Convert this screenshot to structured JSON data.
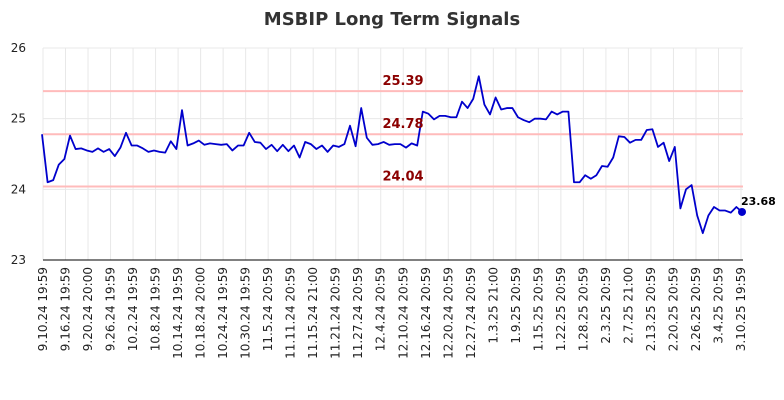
{
  "chart_data": {
    "type": "line",
    "title": "MSBIP Long Term Signals",
    "xlabel": "",
    "ylabel": "",
    "ylim": [
      23,
      26
    ],
    "yticks": [
      "23",
      "24",
      "25",
      "26"
    ],
    "grid": true,
    "line_color": "#0000cc",
    "hline_color": "#ffbbbb",
    "label_color": "#8b0000",
    "x_tick_labels": [
      "9.10.24 19:59",
      "9.16.24 19:59",
      "9.20.24 20:00",
      "9.26.24 19:59",
      "10.2.24 19:59",
      "10.8.24 19:59",
      "10.14.24 19:59",
      "10.18.24 20:00",
      "10.24.24 19:59",
      "10.30.24 19:59",
      "11.5.24 20:59",
      "11.11.24 20:59",
      "11.15.24 21:00",
      "11.21.24 20:59",
      "11.27.24 20:59",
      "12.4.24 20:59",
      "12.10.24 20:59",
      "12.16.24 20:59",
      "12.20.24 20:59",
      "12.27.24 20:59",
      "1.3.25 21:00",
      "1.9.25 20:59",
      "1.15.25 20:59",
      "1.22.25 20:59",
      "1.28.25 20:59",
      "2.3.25 20:59",
      "2.7.25 21:00",
      "2.13.25 20:59",
      "2.20.25 20:59",
      "2.26.25 20:59",
      "3.4.25 20:59",
      "3.10.25 19:59"
    ],
    "horizontal_lines": [
      {
        "value": 25.39,
        "label": "25.39"
      },
      {
        "value": 24.78,
        "label": "24.78"
      },
      {
        "value": 24.04,
        "label": "24.04"
      }
    ],
    "last_value_label": "23.68",
    "series": [
      {
        "values": [
          24.78,
          24.1,
          24.13,
          24.35,
          24.43,
          24.76,
          24.57,
          24.58,
          24.55,
          24.53,
          24.58,
          24.53,
          24.57,
          24.47,
          24.59,
          24.8,
          24.62,
          24.62,
          24.58,
          24.53,
          24.55,
          24.53,
          24.52,
          24.68,
          24.57,
          25.12,
          24.62,
          24.65,
          24.69,
          24.63,
          24.65,
          24.64,
          24.63,
          24.64,
          24.55,
          24.62,
          24.62,
          24.8,
          24.67,
          24.66,
          24.57,
          24.63,
          24.54,
          24.63,
          24.54,
          24.62,
          24.45,
          24.67,
          24.64,
          24.57,
          24.62,
          24.53,
          24.62,
          24.6,
          24.64,
          24.9,
          24.61,
          25.15,
          24.73,
          24.63,
          24.64,
          24.67,
          24.63,
          24.64,
          24.64,
          24.59,
          24.65,
          24.62,
          25.1,
          25.07,
          24.99,
          25.04,
          25.04,
          25.02,
          25.02,
          25.24,
          25.15,
          25.28,
          25.6,
          25.2,
          25.06,
          25.3,
          25.13,
          25.15,
          25.15,
          25.02,
          24.98,
          24.95,
          25.0,
          25.0,
          24.99,
          25.1,
          25.06,
          25.1,
          25.1,
          24.1,
          24.1,
          24.2,
          24.15,
          24.2,
          24.33,
          24.32,
          24.45,
          24.75,
          24.74,
          24.66,
          24.7,
          24.7,
          24.84,
          24.85,
          24.6,
          24.66,
          24.4,
          24.6,
          23.73,
          24.0,
          24.06,
          23.63,
          23.38,
          23.63,
          23.75,
          23.7,
          23.7,
          23.67,
          23.75,
          23.68
        ]
      }
    ]
  }
}
